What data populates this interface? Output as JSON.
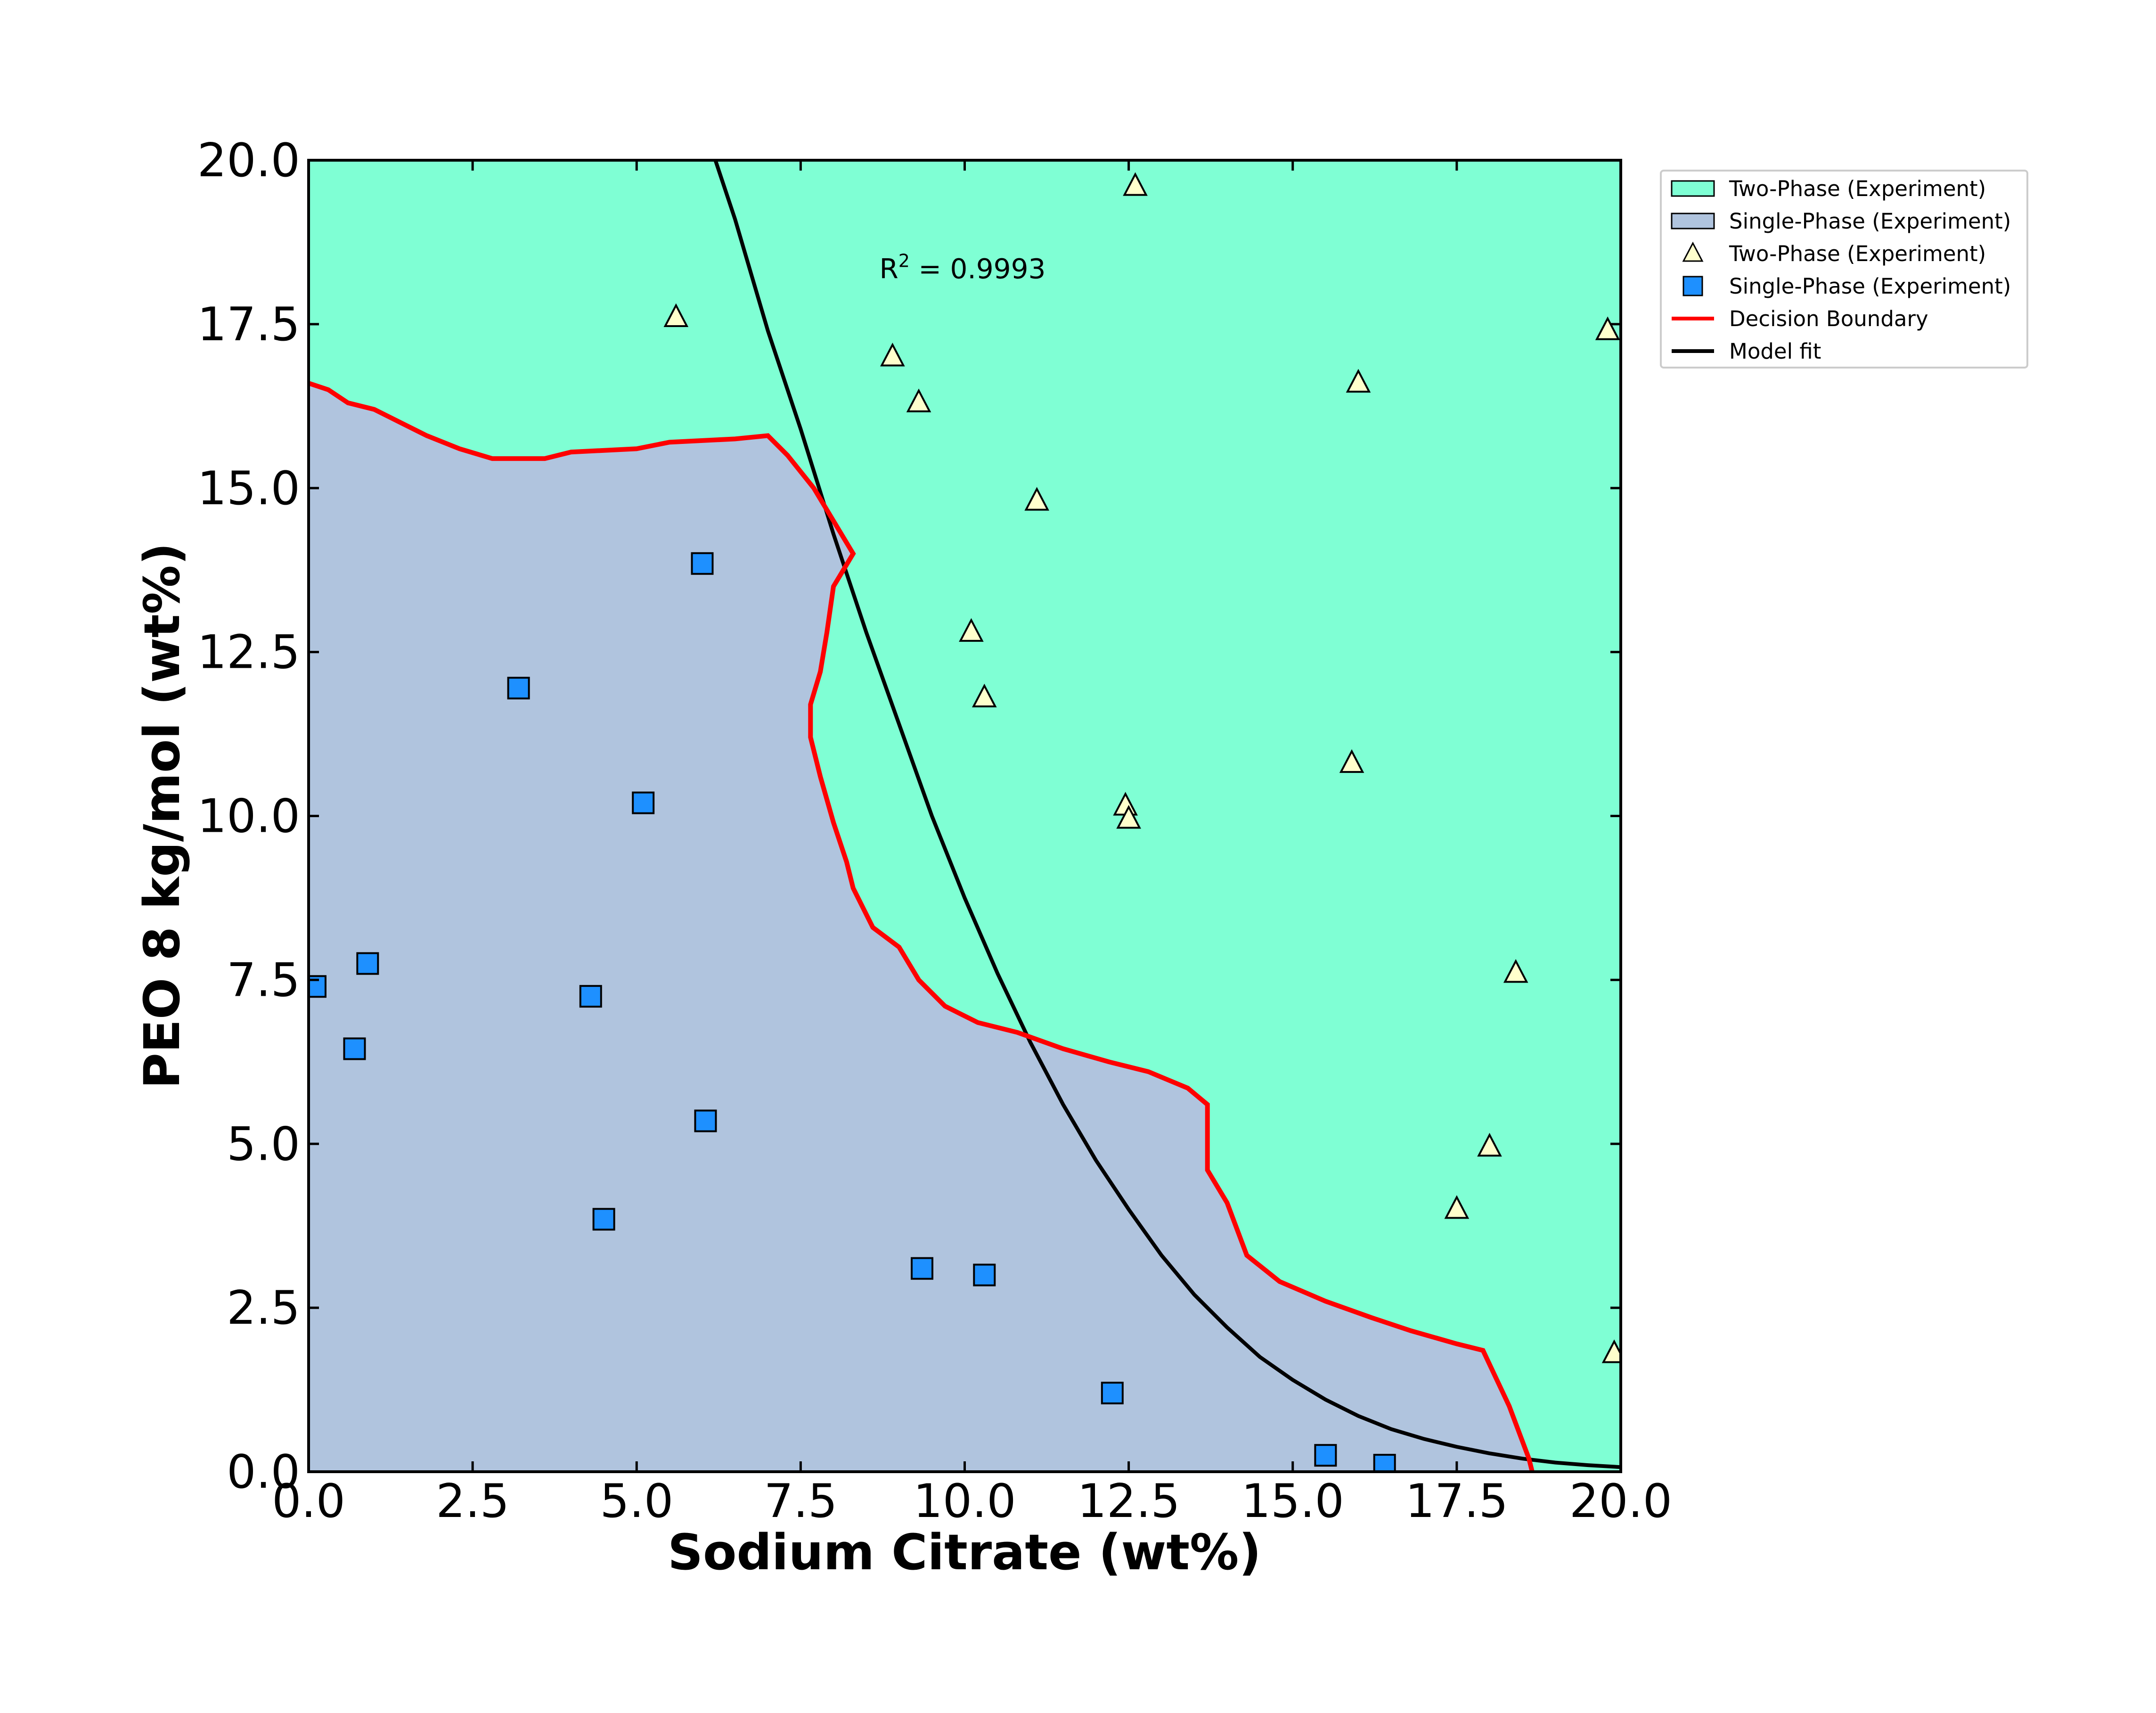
{
  "chart_data": {
    "type": "scatter",
    "title": "",
    "xlabel": "Sodium Citrate (wt%)",
    "ylabel": "PEO 8 kg/mol (wt%)",
    "xlim": [
      0,
      20
    ],
    "ylim": [
      0,
      20
    ],
    "x_ticks": [
      "0.0",
      "2.5",
      "5.0",
      "7.5",
      "10.0",
      "12.5",
      "15.0",
      "17.5",
      "20.0"
    ],
    "y_ticks": [
      "0.0",
      "2.5",
      "5.0",
      "7.5",
      "10.0",
      "12.5",
      "15.0",
      "17.5",
      "20.0"
    ],
    "grid": false,
    "legend_position": "outside upper-right",
    "annotation": {
      "prefix": "R",
      "sup": "2",
      "suffix": " = 0.9993",
      "x": 8.7,
      "y": 18.2
    },
    "legend": [
      {
        "label": "Two-Phase (Experiment)",
        "kind": "patch",
        "color": "#7fffd4"
      },
      {
        "label": "Single-Phase (Experiment)",
        "kind": "patch",
        "color": "#b0c4de"
      },
      {
        "label": "Two-Phase (Experiment)",
        "kind": "triangle",
        "color": "#ffffcc"
      },
      {
        "label": "Single-Phase (Experiment)",
        "kind": "square",
        "color": "#1e90ff"
      },
      {
        "label": "Decision Boundary",
        "kind": "line",
        "color": "#ff0000"
      },
      {
        "label": "Model fit",
        "kind": "line",
        "color": "#000000"
      }
    ],
    "colors": {
      "two_phase_region": "#7fffd4",
      "single_phase_region": "#b0c4de",
      "two_phase_marker": "#ffffcc",
      "single_phase_marker": "#1e90ff",
      "decision_boundary": "#ff0000",
      "model_fit": "#000000"
    },
    "two_phase_points": [
      [
        5.6,
        17.6
      ],
      [
        12.6,
        19.6
      ],
      [
        8.9,
        17.0
      ],
      [
        9.3,
        16.3
      ],
      [
        11.1,
        14.8
      ],
      [
        10.1,
        12.8
      ],
      [
        10.3,
        11.8
      ],
      [
        12.45,
        10.15
      ],
      [
        12.5,
        9.95
      ],
      [
        15.9,
        10.8
      ],
      [
        16.0,
        16.6
      ],
      [
        19.8,
        17.4
      ],
      [
        18.4,
        7.6
      ],
      [
        18.0,
        4.95
      ],
      [
        17.5,
        4.0
      ],
      [
        19.9,
        1.8
      ]
    ],
    "single_phase_points": [
      [
        6.0,
        13.85
      ],
      [
        3.2,
        11.95
      ],
      [
        5.1,
        10.2
      ],
      [
        0.9,
        7.75
      ],
      [
        4.3,
        7.25
      ],
      [
        0.1,
        7.4
      ],
      [
        0.7,
        6.45
      ],
      [
        6.05,
        5.35
      ],
      [
        4.5,
        3.85
      ],
      [
        9.35,
        3.1
      ],
      [
        10.3,
        3.0
      ],
      [
        12.25,
        1.2
      ],
      [
        15.5,
        0.25
      ],
      [
        16.4,
        0.1
      ]
    ],
    "decision_boundary": [
      [
        0.0,
        16.6
      ],
      [
        0.3,
        16.5
      ],
      [
        0.6,
        16.3
      ],
      [
        1.0,
        16.2
      ],
      [
        1.4,
        16.0
      ],
      [
        1.8,
        15.8
      ],
      [
        2.3,
        15.6
      ],
      [
        2.8,
        15.45
      ],
      [
        3.6,
        15.45
      ],
      [
        4.0,
        15.55
      ],
      [
        5.0,
        15.6
      ],
      [
        5.5,
        15.7
      ],
      [
        6.5,
        15.75
      ],
      [
        7.0,
        15.8
      ],
      [
        7.3,
        15.5
      ],
      [
        7.7,
        15.0
      ],
      [
        8.0,
        14.5
      ],
      [
        8.3,
        14.0
      ],
      [
        8.0,
        13.5
      ],
      [
        7.9,
        12.8
      ],
      [
        7.8,
        12.2
      ],
      [
        7.65,
        11.7
      ],
      [
        7.65,
        11.2
      ],
      [
        7.8,
        10.6
      ],
      [
        8.0,
        9.9
      ],
      [
        8.2,
        9.3
      ],
      [
        8.3,
        8.9
      ],
      [
        8.6,
        8.3
      ],
      [
        9.0,
        8.0
      ],
      [
        9.3,
        7.5
      ],
      [
        9.7,
        7.1
      ],
      [
        10.2,
        6.85
      ],
      [
        10.8,
        6.7
      ],
      [
        11.5,
        6.45
      ],
      [
        12.2,
        6.25
      ],
      [
        12.8,
        6.1
      ],
      [
        13.4,
        5.85
      ],
      [
        13.7,
        5.6
      ],
      [
        13.7,
        4.6
      ],
      [
        14.0,
        4.1
      ],
      [
        14.3,
        3.3
      ],
      [
        14.8,
        2.9
      ],
      [
        15.5,
        2.6
      ],
      [
        16.2,
        2.35
      ],
      [
        16.8,
        2.15
      ],
      [
        17.5,
        1.95
      ],
      [
        17.9,
        1.85
      ],
      [
        18.3,
        1.0
      ],
      [
        18.6,
        0.2
      ],
      [
        18.65,
        0.0
      ]
    ],
    "model_fit": {
      "x": [
        6.2,
        6.5,
        7.0,
        7.5,
        8.0,
        8.5,
        9.0,
        9.5,
        10.0,
        10.5,
        11.0,
        11.5,
        12.0,
        12.5,
        13.0,
        13.5,
        14.0,
        14.5,
        15.0,
        15.5,
        16.0,
        16.5,
        17.0,
        17.5,
        18.0,
        18.5,
        19.0,
        19.5,
        20.0
      ],
      "y": [
        20.0,
        19.1,
        17.4,
        15.9,
        14.3,
        12.8,
        11.4,
        10.0,
        8.75,
        7.6,
        6.55,
        5.6,
        4.75,
        4.0,
        3.3,
        2.7,
        2.2,
        1.75,
        1.4,
        1.1,
        0.85,
        0.65,
        0.5,
        0.38,
        0.28,
        0.2,
        0.14,
        0.1,
        0.07
      ]
    }
  }
}
